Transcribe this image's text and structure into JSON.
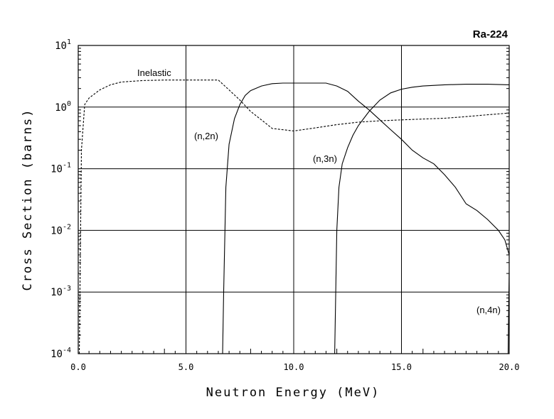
{
  "chart_data": {
    "type": "line",
    "title": "Ra-224",
    "xlabel": "Neutron Energy (MeV)",
    "ylabel": "Cross Section (barns)",
    "xlim": [
      0,
      20
    ],
    "ylim": [
      0.0001,
      10
    ],
    "yscale": "log",
    "grid": true,
    "x_ticks": [
      "0.0",
      "5.0",
      "10.0",
      "15.0",
      "20.0"
    ],
    "y_ticks": [
      {
        "base": "10",
        "exp": "1"
      },
      {
        "base": "10",
        "exp": "0"
      },
      {
        "base": "10",
        "exp": "-1"
      },
      {
        "base": "10",
        "exp": "-2"
      },
      {
        "base": "10",
        "exp": "-3"
      },
      {
        "base": "10",
        "exp": "-4"
      }
    ],
    "series": [
      {
        "name": "Inelastic",
        "style": "dashed",
        "x": [
          0.05,
          0.15,
          0.3,
          0.5,
          1.0,
          1.5,
          2.0,
          3.0,
          4.0,
          5.0,
          6.0,
          6.5,
          7.0,
          7.5,
          8.0,
          8.5,
          9.0,
          10.0,
          11.0,
          12.0,
          13.0,
          14.0,
          15.0,
          16.0,
          17.0,
          18.0,
          19.0,
          20.0
        ],
        "y": [
          0.0001,
          0.2,
          1.1,
          1.4,
          1.9,
          2.3,
          2.55,
          2.7,
          2.75,
          2.75,
          2.75,
          2.75,
          1.9,
          1.3,
          0.85,
          0.62,
          0.45,
          0.41,
          0.46,
          0.52,
          0.57,
          0.6,
          0.62,
          0.64,
          0.66,
          0.7,
          0.75,
          0.8
        ]
      },
      {
        "name": "(n,2n)",
        "style": "solid",
        "x": [
          6.7,
          6.75,
          6.85,
          7.0,
          7.25,
          7.5,
          7.75,
          8.0,
          8.5,
          9.0,
          9.5,
          10.0,
          11.0,
          11.5,
          12.0,
          12.5,
          13.0,
          13.5,
          14.0,
          14.5,
          15.0,
          15.5,
          16.0,
          16.5,
          17.0,
          17.5,
          18.0,
          18.5,
          19.0,
          19.5,
          19.8,
          20.0
        ],
        "y": [
          0.0001,
          0.001,
          0.05,
          0.25,
          0.65,
          1.1,
          1.55,
          1.85,
          2.2,
          2.4,
          2.45,
          2.45,
          2.45,
          2.45,
          2.2,
          1.8,
          1.25,
          0.9,
          0.62,
          0.43,
          0.3,
          0.2,
          0.15,
          0.12,
          0.08,
          0.05,
          0.027,
          0.021,
          0.015,
          0.01,
          0.007,
          0.004
        ]
      },
      {
        "name": "(n,3n)",
        "style": "solid",
        "x": [
          11.9,
          11.95,
          12.0,
          12.1,
          12.25,
          12.5,
          12.75,
          13.0,
          13.5,
          14.0,
          14.5,
          15.0,
          15.5,
          16.0,
          17.0,
          18.0,
          19.0,
          20.0
        ],
        "y": [
          0.0001,
          0.001,
          0.01,
          0.05,
          0.12,
          0.22,
          0.35,
          0.5,
          0.85,
          1.3,
          1.7,
          1.95,
          2.1,
          2.2,
          2.3,
          2.35,
          2.35,
          2.3
        ]
      },
      {
        "name": "(n,4n)",
        "style": "solid",
        "x": [
          19.95,
          19.98,
          20.0
        ],
        "y": [
          0.0001,
          0.0007,
          0.002
        ]
      }
    ],
    "annotations": [
      "Inelastic",
      "(n,2n)",
      "(n,3n)",
      "(n,4n)"
    ]
  }
}
